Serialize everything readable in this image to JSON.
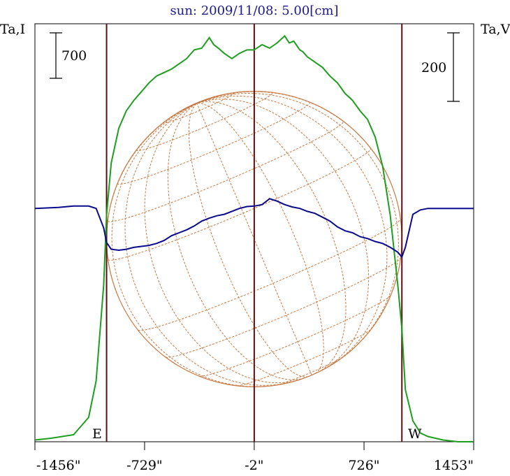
{
  "title": "sun: 2009/11/08: 5.00[cm]",
  "left_axis_label": "Ta,I",
  "right_axis_label": "Ta,V",
  "scale_bars": {
    "left_value": "700",
    "right_value": "200"
  },
  "limb_labels": {
    "east": "E",
    "west": "W"
  },
  "colors": {
    "stokes_i": "#1e9e1e",
    "stokes_v": "#0a0a8c",
    "limb_lines": "#5a1010",
    "grid": "#c87840",
    "title": "#1a1a8c"
  },
  "chart_data": {
    "type": "line",
    "title": "sun: 2009/11/08: 5.00[cm]",
    "xlabel": "",
    "ylabel_left": "Ta,I",
    "ylabel_right": "Ta,V",
    "xlim": [
      -1456,
      1453
    ],
    "x_ticks": [
      "-1456\"",
      "-729\"",
      "-2\"",
      "726\"",
      "1453\""
    ],
    "x_tick_values": [
      -1456,
      -729,
      -2,
      726,
      1453
    ],
    "ylim_I": [
      0,
      2400
    ],
    "ylim_V": [
      -480,
      380
    ],
    "vertical_markers": [
      -981,
      -2,
      977
    ],
    "limb_x": [
      -981,
      977
    ],
    "grid": "heliographic",
    "series": [
      {
        "name": "",
        "axis": "left",
        "x": [
          -1456,
          -1350,
          -1200,
          -1100,
          -1050,
          -1000,
          -981,
          -950,
          -900,
          -850,
          -800,
          -750,
          -700,
          -650,
          -600,
          -550,
          -500,
          -450,
          -400,
          -350,
          -300,
          -270,
          -240,
          -200,
          -150,
          -100,
          -50,
          -2,
          50,
          100,
          150,
          200,
          230,
          260,
          300,
          320,
          350,
          400,
          450,
          500,
          550,
          600,
          650,
          700,
          750,
          800,
          850,
          900,
          950,
          977,
          1000,
          1050,
          1100,
          1150,
          1250,
          1350,
          1453
        ],
        "y": [
          10,
          20,
          40,
          140,
          350,
          900,
          1300,
          1600,
          1800,
          1900,
          1960,
          2010,
          2060,
          2100,
          2120,
          2140,
          2170,
          2200,
          2250,
          2260,
          2320,
          2280,
          2260,
          2230,
          2200,
          2230,
          2250,
          2250,
          2280,
          2260,
          2290,
          2330,
          2290,
          2300,
          2250,
          2240,
          2210,
          2180,
          2150,
          2100,
          2060,
          2000,
          1960,
          1900,
          1850,
          1750,
          1580,
          1300,
          900,
          650,
          300,
          120,
          50,
          30,
          10,
          0,
          0
        ]
      },
      {
        "name": "",
        "axis": "right",
        "x": [
          -1456,
          -1300,
          -1200,
          -1100,
          -1050,
          -1000,
          -981,
          -950,
          -900,
          -850,
          -800,
          -750,
          -700,
          -650,
          -600,
          -550,
          -500,
          -450,
          -400,
          -350,
          -300,
          -250,
          -200,
          -150,
          -100,
          -50,
          0,
          50,
          100,
          150,
          200,
          250,
          300,
          350,
          400,
          450,
          500,
          550,
          600,
          650,
          700,
          750,
          800,
          850,
          900,
          950,
          977,
          1000,
          1050,
          1100,
          1150,
          1250,
          1350,
          1453
        ],
        "y": [
          0,
          2,
          5,
          5,
          0,
          -40,
          -70,
          -84,
          -86,
          -84,
          -80,
          -78,
          -76,
          -72,
          -66,
          -56,
          -50,
          -44,
          -36,
          -26,
          -20,
          -15,
          -12,
          -6,
          0,
          4,
          5,
          8,
          20,
          15,
          8,
          3,
          0,
          -6,
          -10,
          -18,
          -26,
          -38,
          -46,
          -50,
          -58,
          -62,
          -68,
          -72,
          -80,
          -90,
          -100,
          -80,
          -12,
          -3,
          0,
          0,
          0,
          0
        ]
      }
    ]
  }
}
